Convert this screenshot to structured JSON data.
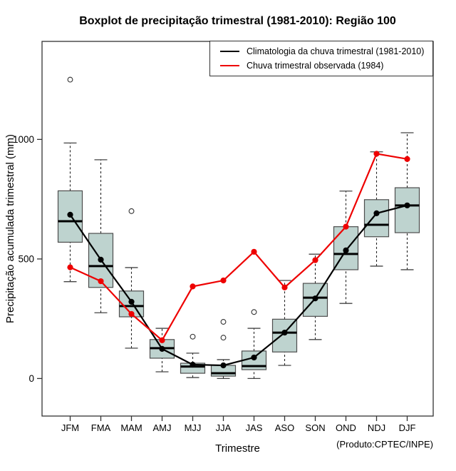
{
  "title": "Boxplot de precipitação trimestral (1981-2010): Região 100",
  "footer_note": "(Produto:CPTEC/INPE)",
  "legend": {
    "items": [
      {
        "label": "Climatologia da chuva trimestral (1981-2010)",
        "color": "#000000"
      },
      {
        "label": "Chuva trimestral observada (1984)",
        "color": "#ee0000"
      }
    ]
  },
  "chart_data": {
    "type": "boxplot",
    "title": "Boxplot de precipitação trimestral (1981-2010): Região 100",
    "xlabel": "Trimestre",
    "ylabel": "Precipitação acumulada trimestral (mm)",
    "categories": [
      "JFM",
      "FMA",
      "MAM",
      "AMJ",
      "MJJ",
      "JJA",
      "JAS",
      "ASO",
      "SON",
      "OND",
      "NDJ",
      "DJF"
    ],
    "y_ticks": [
      0,
      500,
      1000
    ],
    "ylim": [
      -157,
      1410
    ],
    "grid": false,
    "legend_position": "top-right",
    "box_fill": "#bed3cf",
    "box_border": "#4d4d4d",
    "boxes": [
      {
        "category": "JFM",
        "whisker_low": 405,
        "q1": 570,
        "median": 658,
        "q3": 785,
        "whisker_high": 985,
        "outliers": [
          1250
        ]
      },
      {
        "category": "FMA",
        "whisker_low": 275,
        "q1": 381,
        "median": 470,
        "q3": 607,
        "whisker_high": 915,
        "outliers": []
      },
      {
        "category": "MAM",
        "whisker_low": 127,
        "q1": 258,
        "median": 303,
        "q3": 366,
        "whisker_high": 464,
        "outliers": [
          700
        ]
      },
      {
        "category": "AMJ",
        "whisker_low": 28,
        "q1": 85,
        "median": 127,
        "q3": 163,
        "whisker_high": 210,
        "outliers": []
      },
      {
        "category": "MJJ",
        "whisker_low": 4,
        "q1": 22,
        "median": 50,
        "q3": 64,
        "whisker_high": 106,
        "outliers": [
          175
        ]
      },
      {
        "category": "JJA",
        "whisker_low": 0,
        "q1": 10,
        "median": 22,
        "q3": 55,
        "whisker_high": 79,
        "outliers": [
          171,
          237
        ]
      },
      {
        "category": "JAS",
        "whisker_low": 0,
        "q1": 37,
        "median": 52,
        "q3": 115,
        "whisker_high": 210,
        "outliers": [
          278
        ]
      },
      {
        "category": "ASO",
        "whisker_low": 55,
        "q1": 111,
        "median": 192,
        "q3": 248,
        "whisker_high": 410,
        "outliers": []
      },
      {
        "category": "SON",
        "whisker_low": 163,
        "q1": 260,
        "median": 338,
        "q3": 398,
        "whisker_high": 520,
        "outliers": []
      },
      {
        "category": "OND",
        "whisker_low": 314,
        "q1": 455,
        "median": 521,
        "q3": 635,
        "whisker_high": 784,
        "outliers": []
      },
      {
        "category": "NDJ",
        "whisker_low": 470,
        "q1": 593,
        "median": 643,
        "q3": 748,
        "whisker_high": 948,
        "outliers": []
      },
      {
        "category": "DJF",
        "whisker_low": 455,
        "q1": 610,
        "median": 724,
        "q3": 798,
        "whisker_high": 1028,
        "outliers": []
      }
    ],
    "series": [
      {
        "name": "Climatologia da chuva trimestral (1981-2010)",
        "color": "#000000",
        "values": [
          685,
          497,
          321,
          124,
          58,
          55,
          88,
          192,
          335,
          536,
          691,
          724
        ]
      },
      {
        "name": "Chuva trimestral observada (1984)",
        "color": "#ee0000",
        "values": [
          465,
          407,
          270,
          160,
          385,
          410,
          530,
          381,
          495,
          635,
          940,
          918
        ]
      }
    ]
  }
}
